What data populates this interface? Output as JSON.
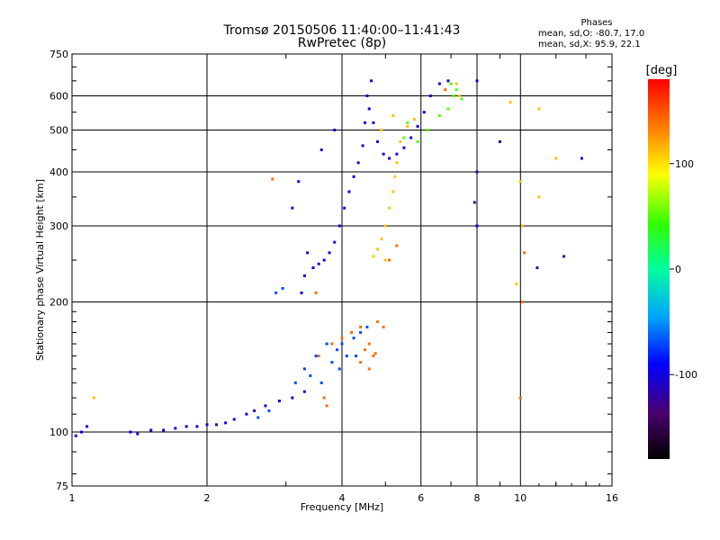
{
  "header": {
    "title_line1": "Tromsø 20150506 11:40:00–11:41:43",
    "title_line2": "RwPretec (8p)"
  },
  "phase_info": {
    "title": "Phases",
    "line_o": "mean, sd,O: -80.7, 17.0",
    "line_x": "mean, sd,X:  95.9, 22.1"
  },
  "chart_data": {
    "type": "scatter",
    "xlabel": "Frequency [MHz]",
    "ylabel": "Stationary phase Virtual Height [km]",
    "x_scale": "log",
    "y_scale": "log",
    "xlim": [
      1,
      16
    ],
    "ylim": [
      75,
      750
    ],
    "x_ticks": [
      1,
      2,
      4,
      6,
      8,
      10,
      16
    ],
    "y_ticks": [
      75,
      100,
      200,
      300,
      400,
      500,
      600,
      750
    ],
    "grid": true,
    "colorbar": {
      "label": "[deg]",
      "range": [
        -180,
        180
      ],
      "ticks": [
        100,
        0,
        -100
      ]
    },
    "series": [
      {
        "phase": -100,
        "points": [
          [
            1.02,
            98
          ],
          [
            1.05,
            100
          ],
          [
            1.08,
            103
          ],
          [
            1.35,
            100
          ],
          [
            1.4,
            99
          ],
          [
            1.5,
            101
          ],
          [
            1.6,
            101
          ],
          [
            1.7,
            102
          ],
          [
            1.8,
            103
          ],
          [
            1.9,
            103
          ],
          [
            2.0,
            104
          ],
          [
            2.1,
            104
          ],
          [
            2.2,
            105
          ],
          [
            2.3,
            107
          ],
          [
            2.45,
            110
          ],
          [
            2.55,
            112
          ],
          [
            2.7,
            115
          ],
          [
            2.9,
            118
          ],
          [
            3.1,
            120
          ],
          [
            3.3,
            124
          ],
          [
            3.25,
            210
          ],
          [
            3.3,
            230
          ],
          [
            3.35,
            260
          ],
          [
            3.45,
            240
          ],
          [
            3.55,
            245
          ],
          [
            3.65,
            250
          ],
          [
            3.75,
            260
          ],
          [
            3.85,
            275
          ],
          [
            3.95,
            300
          ],
          [
            4.05,
            330
          ],
          [
            4.15,
            360
          ],
          [
            4.25,
            390
          ],
          [
            4.35,
            420
          ],
          [
            4.45,
            460
          ],
          [
            4.5,
            520
          ],
          [
            4.55,
            600
          ],
          [
            4.65,
            650
          ],
          [
            4.6,
            560
          ],
          [
            4.7,
            520
          ],
          [
            4.8,
            470
          ],
          [
            4.95,
            440
          ],
          [
            5.1,
            430
          ],
          [
            5.3,
            440
          ],
          [
            5.5,
            455
          ],
          [
            5.7,
            480
          ],
          [
            5.9,
            510
          ],
          [
            6.1,
            550
          ],
          [
            6.3,
            600
          ],
          [
            6.6,
            640
          ],
          [
            6.9,
            650
          ],
          [
            8.0,
            650
          ],
          [
            8.0,
            300
          ],
          [
            3.85,
            500
          ],
          [
            3.6,
            450
          ],
          [
            3.2,
            380
          ],
          [
            3.1,
            330
          ]
        ]
      },
      {
        "phase": -70,
        "points": [
          [
            2.6,
            108
          ],
          [
            2.75,
            112
          ],
          [
            2.85,
            210
          ],
          [
            2.95,
            215
          ],
          [
            3.15,
            130
          ],
          [
            3.3,
            140
          ],
          [
            3.5,
            150
          ],
          [
            3.7,
            160
          ],
          [
            3.8,
            145
          ],
          [
            3.9,
            155
          ],
          [
            4.0,
            160
          ],
          [
            4.1,
            150
          ],
          [
            4.25,
            165
          ],
          [
            4.4,
            170
          ],
          [
            4.55,
            175
          ],
          [
            3.4,
            135
          ],
          [
            3.6,
            130
          ],
          [
            3.95,
            140
          ],
          [
            4.3,
            150
          ]
        ]
      },
      {
        "phase": 50,
        "points": [
          [
            5.5,
            480
          ],
          [
            5.6,
            520
          ],
          [
            5.9,
            470
          ],
          [
            6.2,
            500
          ],
          [
            6.6,
            540
          ],
          [
            6.9,
            560
          ],
          [
            7.1,
            600
          ],
          [
            7.2,
            620
          ],
          [
            7.4,
            590
          ],
          [
            7.0,
            640
          ]
        ]
      },
      {
        "phase": 110,
        "points": [
          [
            1.12,
            120
          ],
          [
            4.7,
            255
          ],
          [
            4.8,
            265
          ],
          [
            4.9,
            280
          ],
          [
            5.0,
            300
          ],
          [
            5.1,
            330
          ],
          [
            5.2,
            360
          ],
          [
            5.25,
            390
          ],
          [
            5.3,
            420
          ],
          [
            5.4,
            470
          ],
          [
            5.6,
            510
          ],
          [
            5.8,
            530
          ],
          [
            5.0,
            250
          ],
          [
            4.9,
            500
          ],
          [
            5.2,
            540
          ],
          [
            7.2,
            640
          ],
          [
            7.3,
            600
          ],
          [
            10.0,
            380
          ],
          [
            10.1,
            300
          ],
          [
            11.0,
            560
          ],
          [
            11.0,
            350
          ],
          [
            12.0,
            430
          ],
          [
            9.5,
            580
          ],
          [
            9.8,
            220
          ]
        ]
      },
      {
        "phase": 140,
        "points": [
          [
            3.55,
            150
          ],
          [
            3.65,
            120
          ],
          [
            3.7,
            115
          ],
          [
            3.8,
            160
          ],
          [
            4.0,
            165
          ],
          [
            4.2,
            170
          ],
          [
            4.4,
            175
          ],
          [
            4.5,
            155
          ],
          [
            4.6,
            160
          ],
          [
            4.7,
            150
          ],
          [
            4.4,
            145
          ],
          [
            4.6,
            140
          ],
          [
            4.75,
            152
          ],
          [
            4.8,
            180
          ],
          [
            4.95,
            175
          ],
          [
            3.5,
            210
          ],
          [
            5.3,
            270
          ],
          [
            5.1,
            250
          ],
          [
            6.8,
            620
          ],
          [
            2.8,
            385
          ],
          [
            10.0,
            120
          ],
          [
            10.1,
            200
          ],
          [
            10.2,
            260
          ]
        ]
      },
      {
        "phase": -120,
        "points": [
          [
            9.0,
            470
          ],
          [
            10.9,
            240
          ],
          [
            12.5,
            255
          ],
          [
            13.7,
            430
          ],
          [
            8.0,
            400
          ],
          [
            7.9,
            340
          ]
        ]
      }
    ]
  }
}
